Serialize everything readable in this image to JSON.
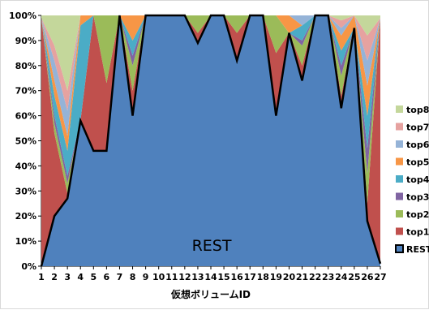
{
  "chart_data": {
    "type": "area",
    "stacked": true,
    "normalized": true,
    "x": [
      1,
      2,
      3,
      4,
      5,
      6,
      7,
      8,
      9,
      10,
      11,
      12,
      13,
      14,
      15,
      16,
      17,
      18,
      19,
      20,
      21,
      22,
      23,
      24,
      25,
      26,
      27
    ],
    "xlabel": "仮想ボリュームID",
    "ylabel": "",
    "ylim": [
      0,
      100
    ],
    "yticks": [
      "0%",
      "10%",
      "20%",
      "30%",
      "40%",
      "50%",
      "60%",
      "70%",
      "80%",
      "90%",
      "100%"
    ],
    "annotation": "REST",
    "legend_position": "right",
    "series": [
      {
        "name": "REST",
        "color": "#4f81bd",
        "values": [
          0,
          20,
          27,
          58,
          46,
          46,
          100,
          60,
          100,
          100,
          100,
          100,
          89,
          100,
          100,
          82,
          100,
          100,
          60,
          93,
          74,
          100,
          100,
          63,
          95,
          18,
          1
        ]
      },
      {
        "name": "top1",
        "color": "#c0504d",
        "values": [
          99,
          33,
          2,
          0,
          54,
          27,
          0,
          10,
          0,
          0,
          0,
          0,
          4,
          0,
          0,
          11,
          0,
          0,
          25,
          0,
          6,
          0,
          0,
          5,
          0,
          7,
          98
        ]
      },
      {
        "name": "top2",
        "color": "#9bbb59",
        "values": [
          0,
          4,
          4,
          0,
          0,
          27,
          0,
          10,
          0,
          0,
          0,
          0,
          7,
          0,
          0,
          7,
          0,
          0,
          15,
          0,
          8,
          0,
          0,
          8,
          0,
          12,
          0
        ]
      },
      {
        "name": "top3",
        "color": "#8064a2",
        "values": [
          0,
          3,
          3,
          0,
          0,
          0,
          0,
          4,
          0,
          0,
          0,
          0,
          0,
          0,
          0,
          0,
          0,
          0,
          0,
          0,
          2,
          0,
          0,
          4,
          0,
          10,
          0
        ]
      },
      {
        "name": "top4",
        "color": "#4bacc6",
        "values": [
          0,
          8,
          10,
          38,
          0,
          0,
          0,
          6,
          0,
          0,
          0,
          0,
          0,
          0,
          0,
          0,
          0,
          0,
          0,
          0,
          6,
          0,
          0,
          6,
          0,
          13,
          0
        ]
      },
      {
        "name": "top5",
        "color": "#f79646",
        "values": [
          0,
          6,
          6,
          4,
          0,
          0,
          0,
          10,
          0,
          0,
          0,
          0,
          0,
          0,
          0,
          0,
          0,
          0,
          0,
          7,
          0,
          0,
          0,
          6,
          5,
          12,
          0
        ]
      },
      {
        "name": "top6",
        "color": "#95b3d7",
        "values": [
          0,
          8,
          10,
          0,
          0,
          0,
          0,
          0,
          0,
          0,
          0,
          0,
          0,
          0,
          0,
          0,
          0,
          0,
          0,
          0,
          4,
          0,
          0,
          3,
          0,
          10,
          0
        ]
      },
      {
        "name": "top7",
        "color": "#e6a2a0",
        "values": [
          0,
          6,
          8,
          0,
          0,
          0,
          0,
          0,
          0,
          0,
          0,
          0,
          0,
          0,
          0,
          0,
          0,
          0,
          0,
          0,
          0,
          0,
          0,
          3,
          0,
          10,
          0
        ]
      },
      {
        "name": "top8",
        "color": "#c4d79b",
        "values": [
          1,
          12,
          30,
          0,
          0,
          0,
          0,
          0,
          0,
          0,
          0,
          0,
          0,
          0,
          0,
          0,
          0,
          0,
          0,
          0,
          0,
          0,
          0,
          2,
          0,
          8,
          1
        ]
      }
    ]
  }
}
